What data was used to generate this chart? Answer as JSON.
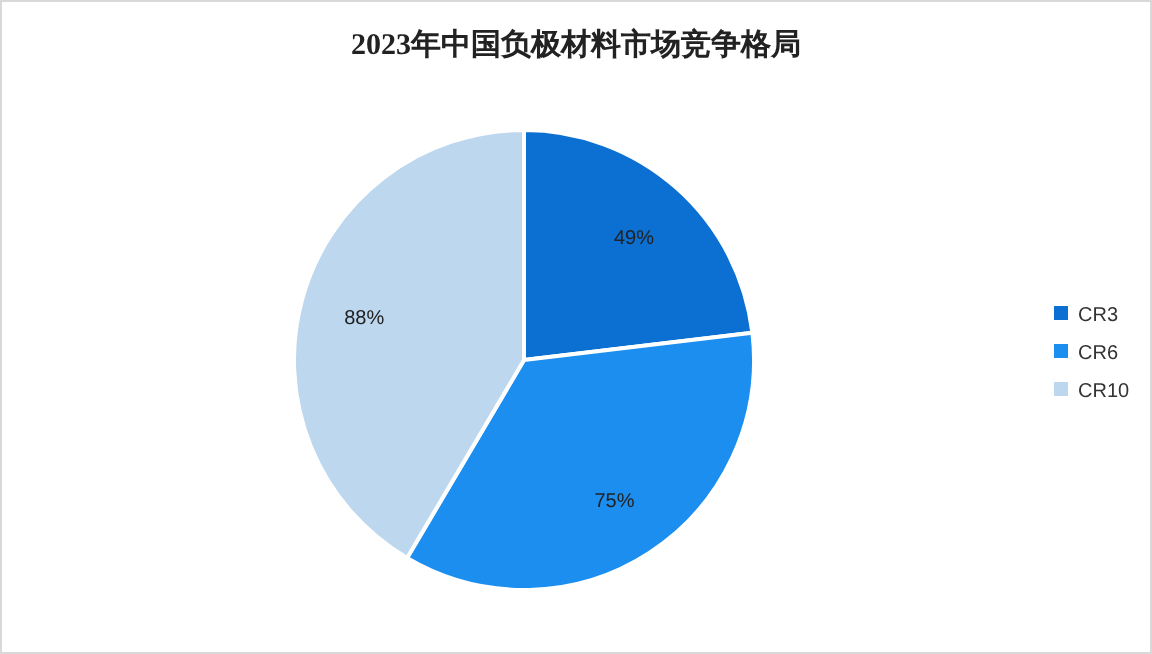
{
  "chart_data": {
    "type": "pie",
    "title": "2023年中国负极材料市场竞争格局",
    "categories": [
      "CR3",
      "CR6",
      "CR10"
    ],
    "values": [
      49,
      75,
      88
    ],
    "colors": [
      "#0b70d1",
      "#1b8ef0",
      "#bdd7ee"
    ],
    "value_labels": [
      "49%",
      "75%",
      "88%"
    ],
    "legend": "right"
  }
}
